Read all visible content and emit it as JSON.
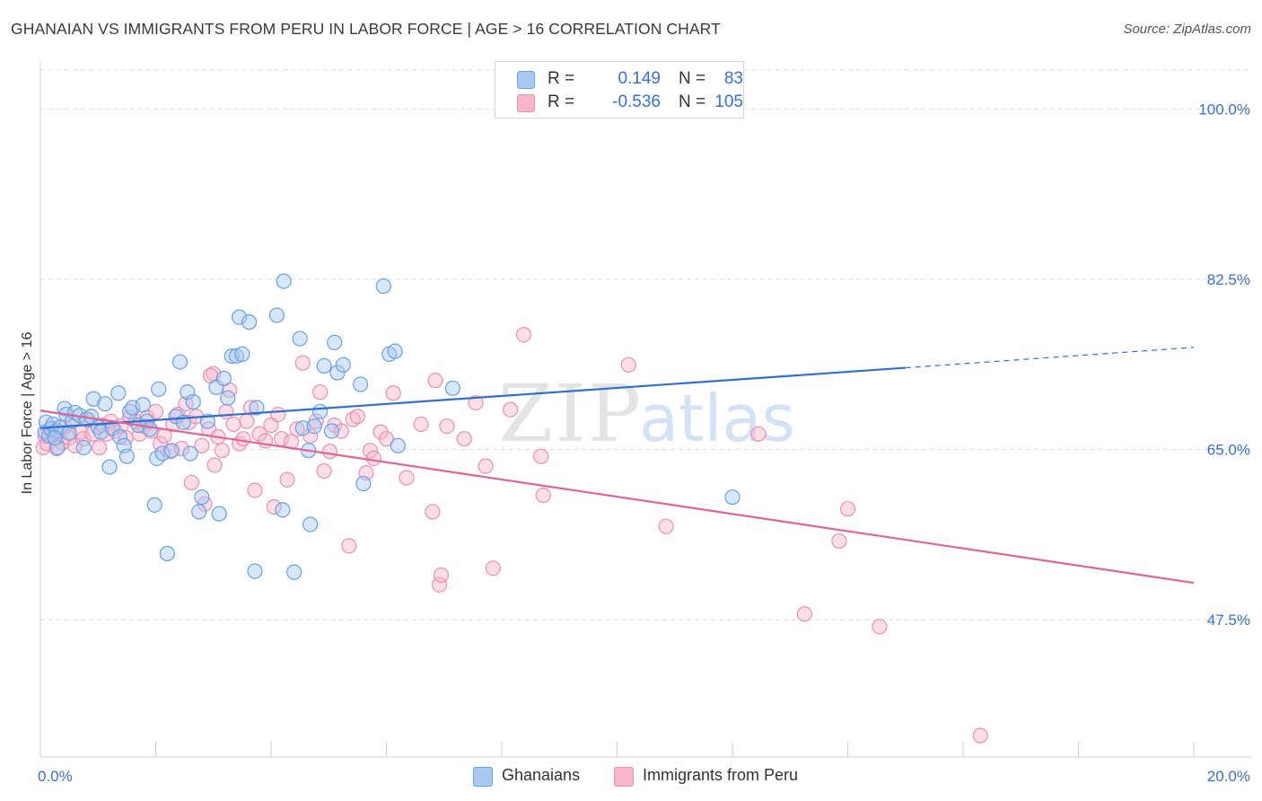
{
  "header": {
    "title": "GHANAIAN VS IMMIGRANTS FROM PERU IN LABOR FORCE | AGE > 16 CORRELATION CHART",
    "source": "Source: ZipAtlas.com"
  },
  "legend": {
    "ghanaians": {
      "r_label": "R =",
      "r_value": "0.149",
      "n_label": "N =",
      "n_value": "83"
    },
    "peru": {
      "r_label": "R =",
      "r_value": "-0.536",
      "n_label": "N =",
      "n_value": "105"
    }
  },
  "bottom_legend": {
    "ghanaians": "Ghanaians",
    "peru": "Immigrants from Peru"
  },
  "watermark": {
    "zip": "ZIP",
    "atlas": "atlas"
  },
  "colors": {
    "blue_fill": "#a9c8f2",
    "blue_stroke": "#6b9fe0",
    "blue_line": "#2f6fd0",
    "pink_fill": "#f7b6cb",
    "pink_stroke": "#ea8fb0",
    "pink_line": "#e06495",
    "axis_text": "#3a6fd0",
    "grid": "#dddddd"
  },
  "chart_data": {
    "type": "scatter",
    "title": "GHANAIAN VS IMMIGRANTS FROM PERU IN LABOR FORCE | AGE > 16 CORRELATION CHART",
    "xlabel": "",
    "ylabel": "In Labor Force | Age > 16",
    "xlim": [
      0,
      20
    ],
    "ylim": [
      33.4,
      104
    ],
    "x_tick_labels": [
      "0.0%",
      "20.0%"
    ],
    "y_ticks": [
      47.5,
      65.0,
      82.5,
      100.0
    ],
    "y_tick_labels": [
      "47.5%",
      "65.0%",
      "82.5%",
      "100.0%"
    ],
    "grid": true,
    "series": [
      {
        "name": "Ghanaians",
        "r": 0.149,
        "n": 83,
        "trend": {
          "x0": 0,
          "y0": 67.2,
          "x1": 15.0,
          "y1": 73.4,
          "dashed_to_x": 20.0,
          "dashed_to_y": 75.5
        },
        "points": [
          [
            0.08,
            66.8
          ],
          [
            0.1,
            67.8
          ],
          [
            0.15,
            66.4
          ],
          [
            0.18,
            67.1
          ],
          [
            0.22,
            67.6
          ],
          [
            0.28,
            66.9
          ],
          [
            0.3,
            65.2
          ],
          [
            0.35,
            67.3
          ],
          [
            0.42,
            69.2
          ],
          [
            0.45,
            68.6
          ],
          [
            0.5,
            66.7
          ],
          [
            0.55,
            67.9
          ],
          [
            0.6,
            68.8
          ],
          [
            0.68,
            68.5
          ],
          [
            0.75,
            65.2
          ],
          [
            0.8,
            68.1
          ],
          [
            0.88,
            68.4
          ],
          [
            0.92,
            70.2
          ],
          [
            1.0,
            67.3
          ],
          [
            1.05,
            66.8
          ],
          [
            1.12,
            69.7
          ],
          [
            1.2,
            63.2
          ],
          [
            1.25,
            67.2
          ],
          [
            1.35,
            70.8
          ],
          [
            1.38,
            66.3
          ],
          [
            1.45,
            65.4
          ],
          [
            1.5,
            64.3
          ],
          [
            1.55,
            68.9
          ],
          [
            1.6,
            69.3
          ],
          [
            1.7,
            67.5
          ],
          [
            1.78,
            69.6
          ],
          [
            1.85,
            67.9
          ],
          [
            1.9,
            67.1
          ],
          [
            1.98,
            59.3
          ],
          [
            2.02,
            64.1
          ],
          [
            2.05,
            71.2
          ],
          [
            2.12,
            64.6
          ],
          [
            2.2,
            54.3
          ],
          [
            2.28,
            64.9
          ],
          [
            2.35,
            68.4
          ],
          [
            2.42,
            74.0
          ],
          [
            2.48,
            67.8
          ],
          [
            2.55,
            70.9
          ],
          [
            2.6,
            64.6
          ],
          [
            2.65,
            69.9
          ],
          [
            2.75,
            58.6
          ],
          [
            2.8,
            60.1
          ],
          [
            2.9,
            67.9
          ],
          [
            3.05,
            71.4
          ],
          [
            3.1,
            58.4
          ],
          [
            3.18,
            72.3
          ],
          [
            3.25,
            70.3
          ],
          [
            3.32,
            74.6
          ],
          [
            3.4,
            74.6
          ],
          [
            3.45,
            78.6
          ],
          [
            3.5,
            74.8
          ],
          [
            3.62,
            78.1
          ],
          [
            3.72,
            52.5
          ],
          [
            3.75,
            69.3
          ],
          [
            4.1,
            78.8
          ],
          [
            4.2,
            58.8
          ],
          [
            4.22,
            82.3
          ],
          [
            4.4,
            52.4
          ],
          [
            4.5,
            76.4
          ],
          [
            4.55,
            67.2
          ],
          [
            4.65,
            64.9
          ],
          [
            4.68,
            57.3
          ],
          [
            4.75,
            67.4
          ],
          [
            4.85,
            68.9
          ],
          [
            4.92,
            73.6
          ],
          [
            5.05,
            66.9
          ],
          [
            5.1,
            76.0
          ],
          [
            5.15,
            72.9
          ],
          [
            5.25,
            73.7
          ],
          [
            5.55,
            71.7
          ],
          [
            5.6,
            61.5
          ],
          [
            5.95,
            81.8
          ],
          [
            6.05,
            74.8
          ],
          [
            6.15,
            75.1
          ],
          [
            6.2,
            65.4
          ],
          [
            7.15,
            71.3
          ],
          [
            12.0,
            60.1
          ],
          [
            0.25,
            66.2
          ]
        ]
      },
      {
        "name": "Immigrants from Peru",
        "r": -0.536,
        "n": 105,
        "trend": {
          "x0": 0,
          "y0": 69.0,
          "x1": 20.0,
          "y1": 51.3
        },
        "points": [
          [
            0.05,
            65.2
          ],
          [
            0.08,
            66.4
          ],
          [
            0.12,
            65.6
          ],
          [
            0.18,
            67.2
          ],
          [
            0.22,
            66.5
          ],
          [
            0.28,
            65.1
          ],
          [
            0.32,
            66.8
          ],
          [
            0.38,
            65.7
          ],
          [
            0.42,
            67.3
          ],
          [
            0.5,
            66.2
          ],
          [
            0.55,
            67.9
          ],
          [
            0.6,
            65.4
          ],
          [
            0.7,
            66.8
          ],
          [
            0.75,
            66.1
          ],
          [
            0.82,
            68.1
          ],
          [
            0.9,
            66.6
          ],
          [
            1.02,
            65.2
          ],
          [
            1.08,
            67.5
          ],
          [
            1.15,
            66.6
          ],
          [
            1.22,
            67.9
          ],
          [
            1.3,
            66.9
          ],
          [
            1.4,
            67.4
          ],
          [
            1.48,
            66.2
          ],
          [
            1.55,
            68.3
          ],
          [
            1.65,
            67.9
          ],
          [
            1.72,
            66.6
          ],
          [
            1.8,
            67.4
          ],
          [
            1.85,
            68.3
          ],
          [
            1.92,
            66.9
          ],
          [
            2.0,
            68.9
          ],
          [
            2.08,
            65.6
          ],
          [
            2.15,
            66.4
          ],
          [
            2.25,
            64.8
          ],
          [
            2.3,
            67.6
          ],
          [
            2.38,
            68.6
          ],
          [
            2.45,
            65.1
          ],
          [
            2.52,
            69.7
          ],
          [
            2.58,
            67.8
          ],
          [
            2.62,
            61.6
          ],
          [
            2.7,
            68.4
          ],
          [
            2.8,
            65.4
          ],
          [
            2.85,
            59.4
          ],
          [
            2.92,
            67.1
          ],
          [
            3.0,
            72.8
          ],
          [
            3.02,
            63.4
          ],
          [
            3.08,
            66.3
          ],
          [
            3.15,
            64.9
          ],
          [
            3.22,
            68.9
          ],
          [
            3.28,
            71.1
          ],
          [
            3.35,
            67.6
          ],
          [
            3.45,
            65.6
          ],
          [
            3.52,
            66.1
          ],
          [
            3.58,
            67.9
          ],
          [
            3.65,
            69.3
          ],
          [
            3.72,
            60.8
          ],
          [
            3.8,
            66.6
          ],
          [
            3.9,
            65.9
          ],
          [
            4.0,
            67.5
          ],
          [
            4.05,
            59.1
          ],
          [
            4.12,
            68.6
          ],
          [
            4.18,
            66.1
          ],
          [
            4.28,
            61.9
          ],
          [
            4.35,
            65.8
          ],
          [
            4.45,
            67.1
          ],
          [
            4.55,
            73.9
          ],
          [
            4.68,
            66.4
          ],
          [
            4.78,
            67.9
          ],
          [
            4.85,
            70.9
          ],
          [
            4.92,
            62.8
          ],
          [
            5.02,
            64.8
          ],
          [
            5.1,
            67.5
          ],
          [
            5.22,
            66.9
          ],
          [
            5.35,
            55.1
          ],
          [
            5.42,
            68.1
          ],
          [
            5.5,
            68.4
          ],
          [
            5.65,
            62.6
          ],
          [
            5.72,
            64.9
          ],
          [
            5.78,
            64.1
          ],
          [
            5.9,
            66.8
          ],
          [
            6.0,
            66.1
          ],
          [
            6.12,
            70.8
          ],
          [
            6.35,
            62.1
          ],
          [
            6.6,
            67.6
          ],
          [
            6.8,
            58.6
          ],
          [
            6.85,
            72.1
          ],
          [
            6.92,
            51.1
          ],
          [
            6.95,
            52.1
          ],
          [
            7.05,
            67.4
          ],
          [
            7.35,
            66.1
          ],
          [
            7.55,
            69.8
          ],
          [
            7.72,
            63.3
          ],
          [
            7.85,
            52.8
          ],
          [
            8.15,
            69.1
          ],
          [
            8.38,
            76.8
          ],
          [
            8.68,
            64.3
          ],
          [
            8.72,
            60.3
          ],
          [
            10.2,
            73.7
          ],
          [
            10.85,
            57.1
          ],
          [
            12.45,
            66.6
          ],
          [
            13.25,
            48.1
          ],
          [
            13.85,
            55.6
          ],
          [
            14.0,
            58.9
          ],
          [
            14.55,
            46.8
          ],
          [
            16.3,
            35.6
          ],
          [
            2.95,
            72.6
          ]
        ]
      }
    ]
  }
}
